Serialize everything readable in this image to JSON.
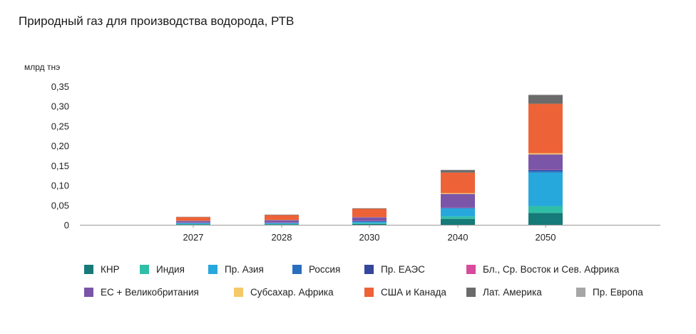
{
  "header": {
    "title": "Природный газ для производства водорода, РТВ"
  },
  "chart_data": {
    "type": "bar",
    "stacked": true,
    "title": "Природный газ для производства водорода, РТВ",
    "ylabel": "млрд тнэ",
    "xlabel": "",
    "ylim": [
      0,
      0.35
    ],
    "yticks": [
      0,
      0.05,
      0.1,
      0.15,
      0.2,
      0.25,
      0.3,
      0.35
    ],
    "ytick_labels": [
      "0",
      "0,05",
      "0,10",
      "0,15",
      "0,20",
      "0,25",
      "0,30",
      "0,35"
    ],
    "categories": [
      "2027",
      "2028",
      "2030",
      "2040",
      "2050"
    ],
    "grid": false,
    "legend_position": "bottom",
    "series": [
      {
        "name": "КНР",
        "color": "#157a78",
        "values": [
          0.001,
          0.001,
          0.002,
          0.015,
          0.03
        ]
      },
      {
        "name": "Индия",
        "color": "#2fbfa6",
        "values": [
          0.001,
          0.001,
          0.002,
          0.006,
          0.017
        ]
      },
      {
        "name": "Пр. Азия",
        "color": "#27a8dc",
        "values": [
          0.002,
          0.002,
          0.003,
          0.02,
          0.085
        ]
      },
      {
        "name": "Россия",
        "color": "#2a6fbf",
        "values": [
          0.001,
          0.001,
          0.002,
          0.002,
          0.005
        ]
      },
      {
        "name": "Пр. ЕАЭС",
        "color": "#34479c",
        "values": [
          0.0005,
          0.0005,
          0.0005,
          0.001,
          0.002
        ]
      },
      {
        "name": "Бл., Ср. Восток и Сев. Африка",
        "color": "#d84a9c",
        "values": [
          0.0005,
          0.0005,
          0.0005,
          0.001,
          0.001
        ]
      },
      {
        "name": "ЕС + Великобритания",
        "color": "#7b55a8",
        "values": [
          0.004,
          0.006,
          0.009,
          0.033,
          0.038
        ]
      },
      {
        "name": "Субсахар. Африка",
        "color": "#f5c96a",
        "values": [
          0.0005,
          0.0005,
          0.0005,
          0.002,
          0.003
        ]
      },
      {
        "name": "США и Канада",
        "color": "#ee6237",
        "values": [
          0.009,
          0.012,
          0.021,
          0.052,
          0.125
        ]
      },
      {
        "name": "Лат. Америка",
        "color": "#6b6b6b",
        "values": [
          0.0005,
          0.001,
          0.001,
          0.006,
          0.022
        ]
      },
      {
        "name": "Пр. Европа",
        "color": "#a6a6a6",
        "values": [
          0.0005,
          0.0005,
          0.0005,
          0.001,
          0.001
        ]
      }
    ]
  }
}
